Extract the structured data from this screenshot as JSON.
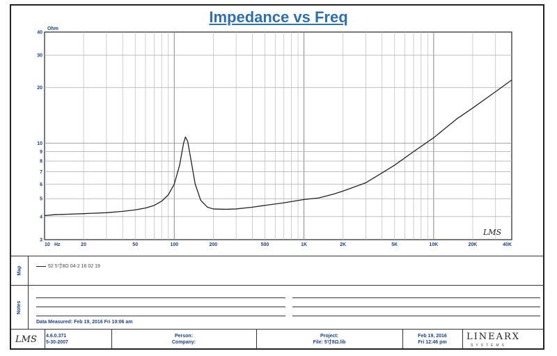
{
  "chart_data": {
    "type": "line",
    "title": "Impedance vs Freq",
    "y_unit": "Ohm",
    "x_unit": "Hz",
    "x_scale": "log",
    "y_scale": "log",
    "xlim": [
      10,
      40000
    ],
    "ylim": [
      3,
      40
    ],
    "x_ticks": [
      {
        "v": 10,
        "label": "10"
      },
      {
        "v": 20,
        "label": "20"
      },
      {
        "v": 50,
        "label": "50"
      },
      {
        "v": 100,
        "label": "100"
      },
      {
        "v": 200,
        "label": "200"
      },
      {
        "v": 500,
        "label": "500"
      },
      {
        "v": 1000,
        "label": "1K"
      },
      {
        "v": 2000,
        "label": "2K"
      },
      {
        "v": 5000,
        "label": "5K"
      },
      {
        "v": 10000,
        "label": "10K"
      },
      {
        "v": 20000,
        "label": "20K"
      },
      {
        "v": 40000,
        "label": "40K"
      }
    ],
    "y_ticks": [
      {
        "v": 3,
        "label": "3"
      },
      {
        "v": 4,
        "label": "4"
      },
      {
        "v": 5,
        "label": "5"
      },
      {
        "v": 6,
        "label": "6"
      },
      {
        "v": 7,
        "label": "7"
      },
      {
        "v": 8,
        "label": "8"
      },
      {
        "v": 9,
        "label": "9"
      },
      {
        "v": 10,
        "label": "10"
      },
      {
        "v": 20,
        "label": "20"
      },
      {
        "v": 30,
        "label": "30"
      },
      {
        "v": 40,
        "label": "40"
      }
    ],
    "grid": true,
    "series": [
      {
        "name": "52  5寸8Ω 04-2   16 02 19",
        "color": "#222222",
        "points": [
          [
            10,
            4.05
          ],
          [
            12,
            4.1
          ],
          [
            15,
            4.12
          ],
          [
            20,
            4.15
          ],
          [
            30,
            4.2
          ],
          [
            40,
            4.27
          ],
          [
            50,
            4.35
          ],
          [
            60,
            4.45
          ],
          [
            70,
            4.6
          ],
          [
            80,
            4.85
          ],
          [
            90,
            5.25
          ],
          [
            100,
            6.0
          ],
          [
            110,
            7.6
          ],
          [
            118,
            10.0
          ],
          [
            122,
            10.8
          ],
          [
            127,
            10.2
          ],
          [
            135,
            8.0
          ],
          [
            145,
            6.0
          ],
          [
            160,
            4.9
          ],
          [
            180,
            4.5
          ],
          [
            200,
            4.4
          ],
          [
            250,
            4.38
          ],
          [
            300,
            4.4
          ],
          [
            400,
            4.5
          ],
          [
            500,
            4.6
          ],
          [
            700,
            4.75
          ],
          [
            1000,
            4.95
          ],
          [
            1300,
            5.05
          ],
          [
            1700,
            5.3
          ],
          [
            2000,
            5.5
          ],
          [
            3000,
            6.1
          ],
          [
            4000,
            6.9
          ],
          [
            5000,
            7.6
          ],
          [
            7000,
            9.0
          ],
          [
            10000,
            10.7
          ],
          [
            15000,
            13.5
          ],
          [
            20000,
            15.5
          ],
          [
            30000,
            19.0
          ],
          [
            40000,
            22.0
          ]
        ]
      }
    ]
  },
  "legend": {
    "entry": "52  5寸8Ω 04-2   16 02 19"
  },
  "panels": {
    "map_label": "Map",
    "notes_label": "Notes"
  },
  "notes": {
    "data_measured": "Data Measured: Feb 19, 2016  Fri 10:06 am"
  },
  "footer": {
    "logo": "LMS",
    "version": "4.6.0.371",
    "version_date": "5-30-2007",
    "person_label": "Person:",
    "company_label": "Company:",
    "project_label": "Project:",
    "file_label": "File: 5寸8Ω.lib",
    "date": "Feb 19, 2016",
    "time": "Fri 12:46 pm",
    "brand": "LINEARX",
    "brand_sub": "SYSTEMS"
  },
  "watermark": "LMS"
}
